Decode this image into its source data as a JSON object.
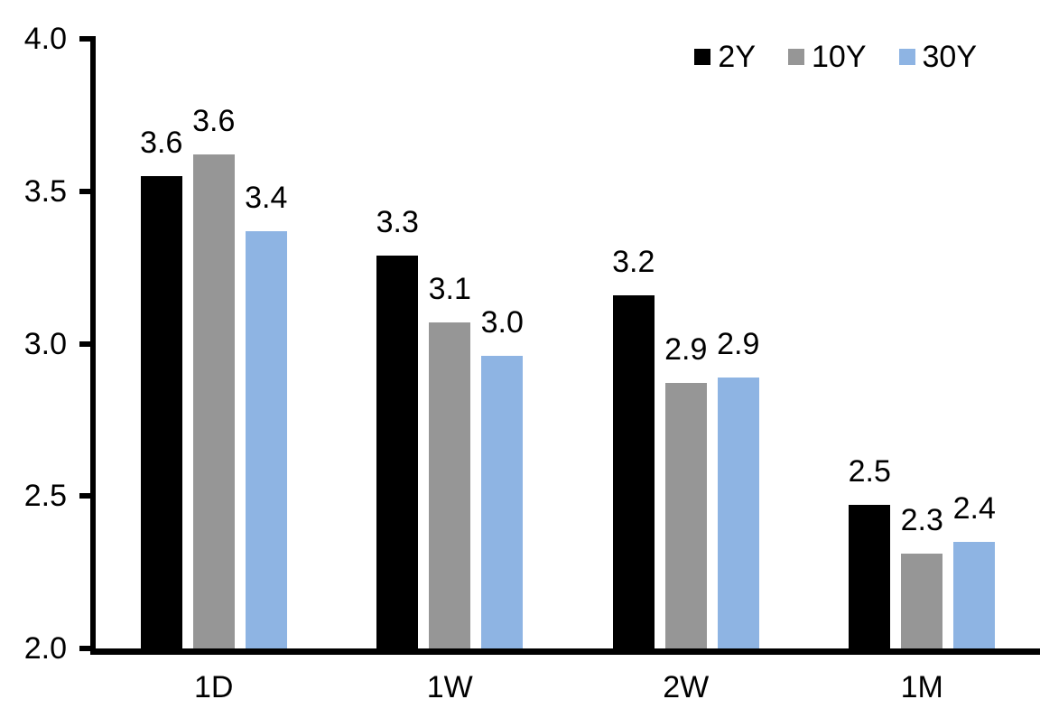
{
  "chart_data": {
    "type": "bar",
    "title": "",
    "xlabel": "",
    "ylabel": "",
    "categories": [
      "1D",
      "1W",
      "2W",
      "1M"
    ],
    "series": [
      {
        "name": "2Y",
        "color": "#000000",
        "values": [
          3.55,
          3.29,
          3.16,
          2.47
        ],
        "labels": [
          "3.6",
          "3.3",
          "3.2",
          "2.5"
        ]
      },
      {
        "name": "10Y",
        "color": "#969696",
        "values": [
          3.62,
          3.07,
          2.87,
          2.31
        ],
        "labels": [
          "3.6",
          "3.1",
          "2.9",
          "2.3"
        ]
      },
      {
        "name": "30Y",
        "color": "#8EB4E3",
        "values": [
          3.37,
          2.96,
          2.89,
          2.35
        ],
        "labels": [
          "3.4",
          "3.0",
          "2.9",
          "2.4"
        ]
      }
    ],
    "ylim": [
      2.0,
      4.0
    ],
    "yticks": [
      4.0,
      3.5,
      3.0,
      2.5,
      2.0
    ],
    "ytick_labels": [
      "4.0",
      "3.5",
      "3.0",
      "2.5",
      "2.0"
    ],
    "grid": false,
    "legend_position": "top-right",
    "axis_color": "#000000",
    "background_color": "#ffffff"
  }
}
